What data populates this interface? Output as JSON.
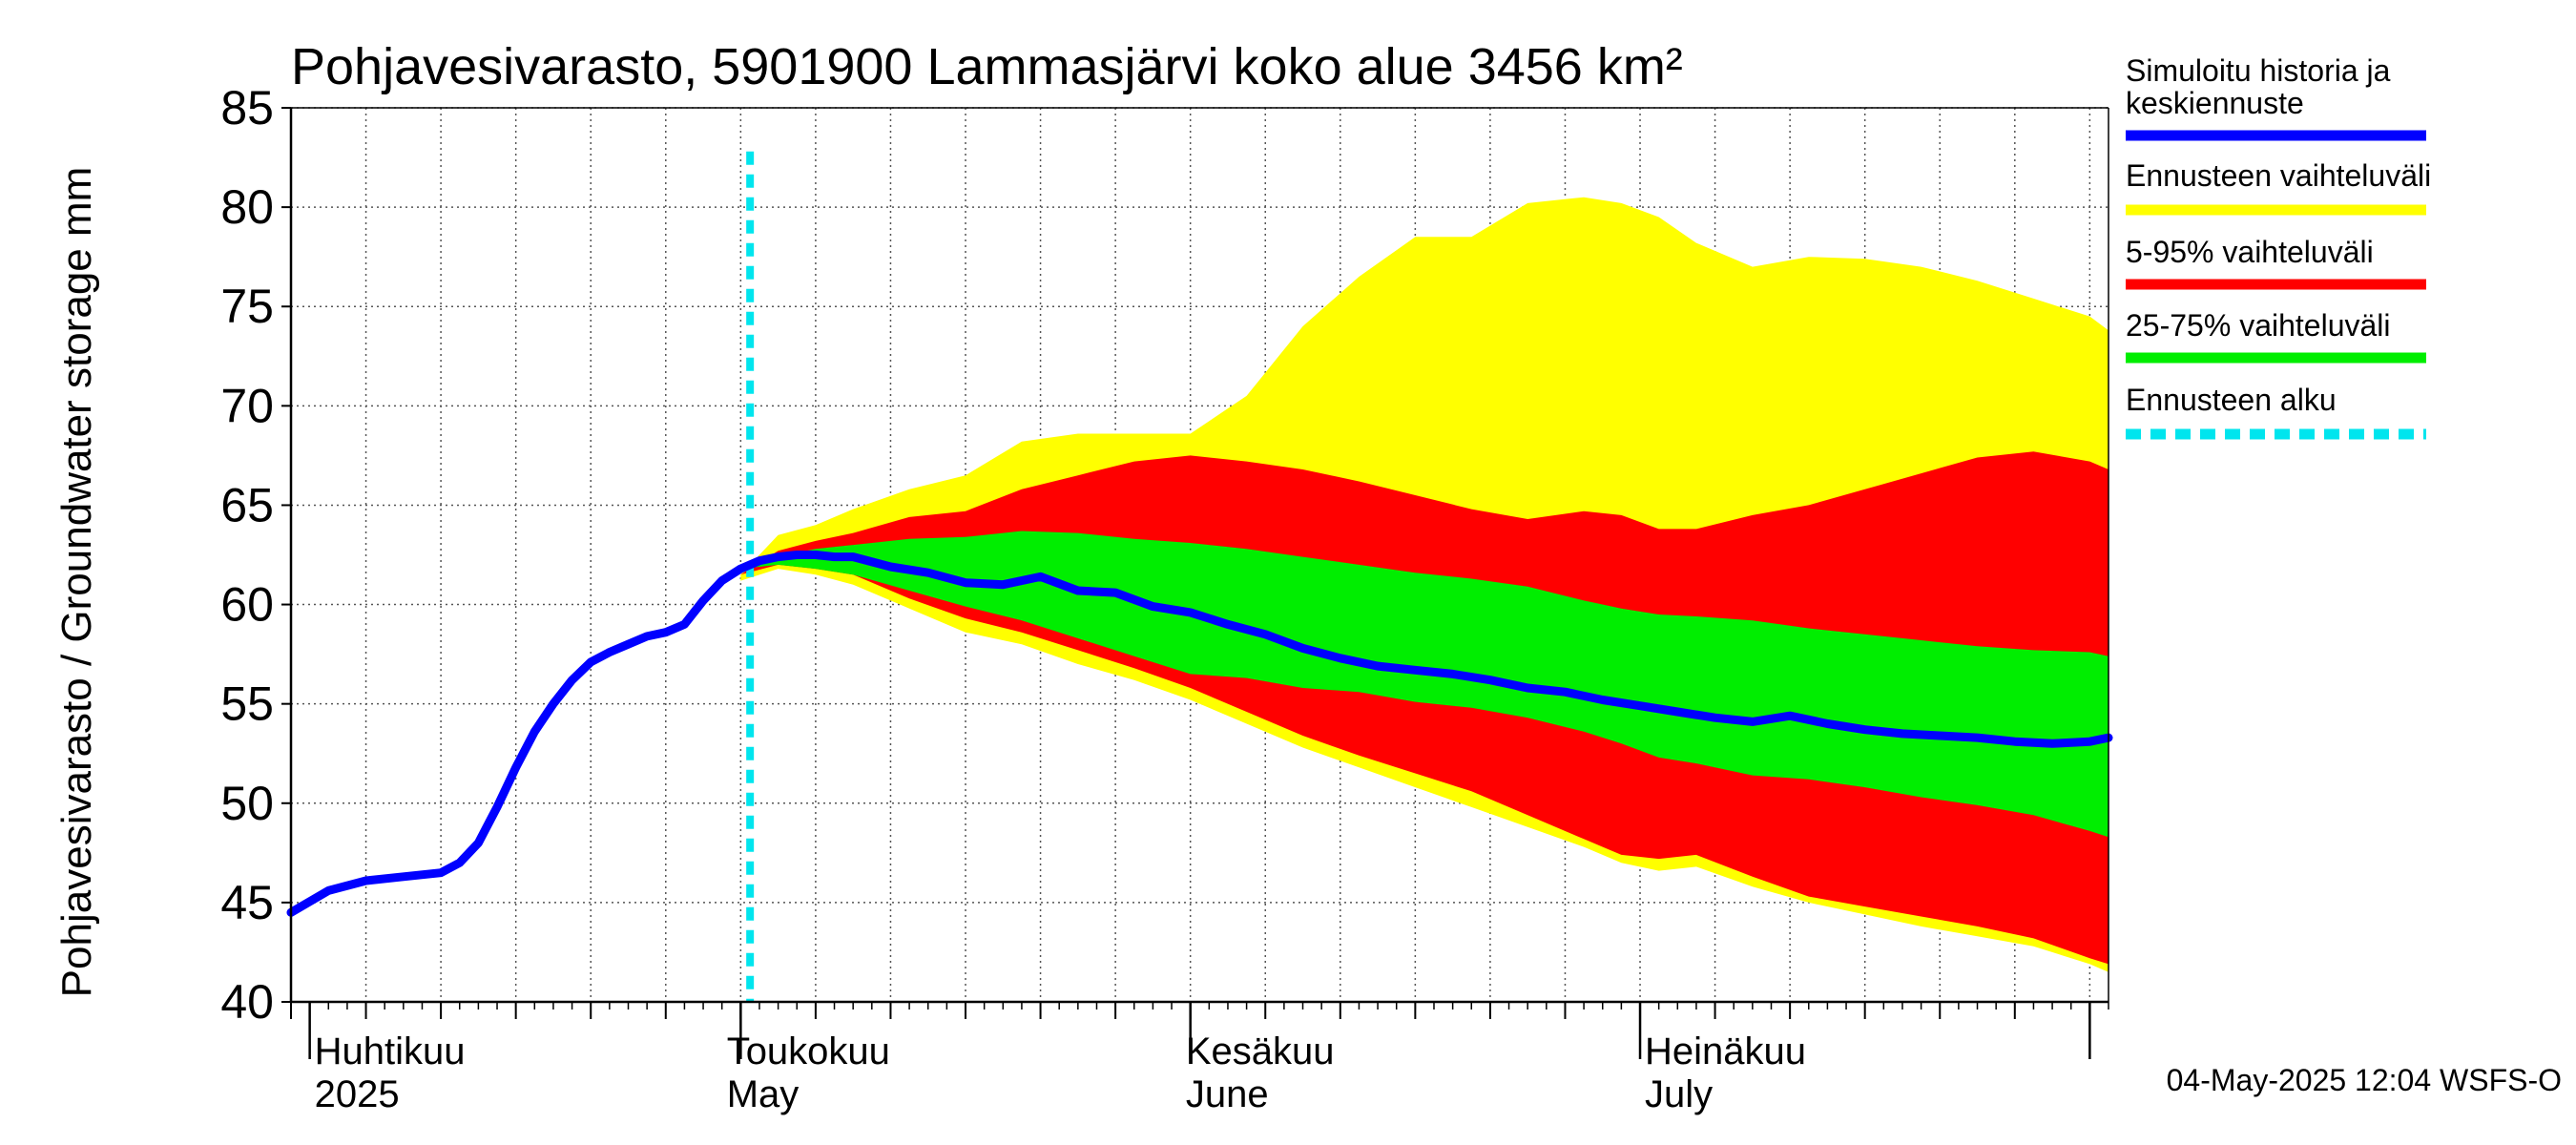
{
  "chart_data": {
    "type": "area",
    "title": "Pohjavesivarasto, 5901900 Lammasjärvi koko alue 3456 km²",
    "ylabel": "Pohjavesivarasto / Groundwater storage   mm",
    "xlabel": "",
    "xlim": [
      0,
      97
    ],
    "ylim": [
      40,
      85
    ],
    "yticks": [
      40,
      45,
      50,
      55,
      60,
      65,
      70,
      75,
      80,
      85
    ],
    "grid": true,
    "x_unit": "days since 2025-03-30",
    "forecast_start_x": 24.5,
    "month_labels": [
      {
        "x": 1,
        "fi": "Huhtikuu",
        "en": "2025"
      },
      {
        "x": 23,
        "fi": "Toukokuu",
        "en": "May"
      },
      {
        "x": 47.5,
        "fi": "Kesäkuu",
        "en": "June"
      },
      {
        "x": 72,
        "fi": "Heinäkuu",
        "en": "July"
      }
    ],
    "month_boundaries": [
      1,
      24,
      48,
      72,
      96
    ],
    "series": [
      {
        "name": "Simuloitu historia ja keskiennuste",
        "color": "#0000ff",
        "x": [
          0,
          2,
          4,
          6,
          8,
          9,
          10,
          11,
          12,
          13,
          14,
          15,
          16,
          17,
          18,
          19,
          20,
          21,
          22,
          23,
          24,
          25,
          26,
          27,
          28,
          29,
          30,
          32,
          34,
          36,
          38,
          40,
          42,
          44,
          46,
          48,
          50,
          52,
          54,
          56,
          58,
          60,
          62,
          64,
          66,
          68,
          70,
          72,
          74,
          76,
          78,
          80,
          82,
          84,
          86,
          88,
          90,
          92,
          94,
          96,
          97
        ],
        "y": [
          44.5,
          45.6,
          46.1,
          46.3,
          46.5,
          47.0,
          48.0,
          49.8,
          51.8,
          53.6,
          55.0,
          56.2,
          57.1,
          57.6,
          58.0,
          58.4,
          58.6,
          59.0,
          60.2,
          61.2,
          61.8,
          62.2,
          62.4,
          62.5,
          62.5,
          62.4,
          62.4,
          61.9,
          61.6,
          61.1,
          61.0,
          61.4,
          60.7,
          60.6,
          59.9,
          59.6,
          59.0,
          58.5,
          57.8,
          57.3,
          56.9,
          56.7,
          56.5,
          56.2,
          55.8,
          55.6,
          55.2,
          54.9,
          54.6,
          54.3,
          54.1,
          54.4,
          54.0,
          53.7,
          53.5,
          53.4,
          53.3,
          53.1,
          53.0,
          53.1,
          53.3
        ]
      }
    ],
    "bands": [
      {
        "name": "Ennusteen vaihteluväli",
        "color": "#ffff00",
        "x": [
          24,
          26,
          28,
          30,
          33,
          36,
          39,
          42,
          45,
          48,
          51,
          54,
          57,
          60,
          63,
          66,
          69,
          71,
          73,
          75,
          78,
          81,
          84,
          87,
          90,
          93,
          96,
          97
        ],
        "lower": [
          61.2,
          61.8,
          61.5,
          61.0,
          59.8,
          58.6,
          58.0,
          57.0,
          56.2,
          55.2,
          54.0,
          52.8,
          51.8,
          50.8,
          49.8,
          48.8,
          47.8,
          47.0,
          46.6,
          46.8,
          45.8,
          45.0,
          44.4,
          43.8,
          43.3,
          42.8,
          41.9,
          41.5
        ],
        "upper": [
          61.5,
          63.5,
          64.0,
          64.8,
          65.8,
          66.5,
          68.2,
          68.6,
          68.6,
          68.6,
          70.5,
          74.0,
          76.5,
          78.5,
          78.5,
          80.2,
          80.5,
          80.2,
          79.5,
          78.2,
          77.0,
          77.5,
          77.4,
          77.0,
          76.3,
          75.4,
          74.5,
          73.8
        ]
      },
      {
        "name": "5-95% vaihteluväli",
        "color": "#ff0000",
        "x": [
          24,
          26,
          28,
          30,
          33,
          36,
          39,
          42,
          45,
          48,
          51,
          54,
          57,
          60,
          63,
          66,
          69,
          71,
          73,
          75,
          78,
          81,
          84,
          87,
          90,
          93,
          96,
          97
        ],
        "lower": [
          61.5,
          62.0,
          61.8,
          61.5,
          60.3,
          59.3,
          58.6,
          57.7,
          56.8,
          55.8,
          54.6,
          53.4,
          52.4,
          51.5,
          50.6,
          49.4,
          48.2,
          47.4,
          47.2,
          47.4,
          46.3,
          45.3,
          44.8,
          44.3,
          43.8,
          43.2,
          42.2,
          41.9
        ],
        "upper": [
          61.5,
          62.7,
          63.2,
          63.6,
          64.4,
          64.7,
          65.8,
          66.5,
          67.2,
          67.5,
          67.2,
          66.8,
          66.2,
          65.5,
          64.8,
          64.3,
          64.7,
          64.5,
          63.8,
          63.8,
          64.5,
          65.0,
          65.8,
          66.6,
          67.4,
          67.7,
          67.2,
          66.8
        ]
      },
      {
        "name": "25-75% vaihteluväli",
        "color": "#00ee00",
        "x": [
          24,
          26,
          28,
          30,
          33,
          36,
          39,
          42,
          45,
          48,
          51,
          54,
          57,
          60,
          63,
          66,
          69,
          71,
          73,
          75,
          78,
          81,
          84,
          87,
          90,
          93,
          96,
          97
        ],
        "lower": [
          61.8,
          62.0,
          61.8,
          61.5,
          60.7,
          59.9,
          59.2,
          58.3,
          57.4,
          56.5,
          56.3,
          55.8,
          55.6,
          55.1,
          54.8,
          54.3,
          53.6,
          53.0,
          52.3,
          52.0,
          51.4,
          51.2,
          50.8,
          50.3,
          49.9,
          49.4,
          48.6,
          48.3
        ],
        "upper": [
          61.8,
          62.4,
          62.8,
          63.0,
          63.3,
          63.4,
          63.7,
          63.6,
          63.3,
          63.1,
          62.8,
          62.4,
          62.0,
          61.6,
          61.3,
          60.9,
          60.2,
          59.8,
          59.5,
          59.4,
          59.2,
          58.8,
          58.5,
          58.2,
          57.9,
          57.7,
          57.6,
          57.4
        ]
      }
    ],
    "legend": [
      {
        "label": "Simuloitu historia ja\nkeskiennuste",
        "color": "#0000ff",
        "style": "solid"
      },
      {
        "label": "Ennusteen vaihteluväli",
        "color": "#ffff00",
        "style": "solid"
      },
      {
        "label": "5-95% vaihteluväli",
        "color": "#ff0000",
        "style": "solid"
      },
      {
        "label": "25-75% vaihteluväli",
        "color": "#00ee00",
        "style": "solid"
      },
      {
        "label": "Ennusteen alku",
        "color": "#00e5ee",
        "style": "dashed"
      }
    ],
    "legend_position": "right",
    "footer": "04-May-2025 12:04 WSFS-O"
  }
}
